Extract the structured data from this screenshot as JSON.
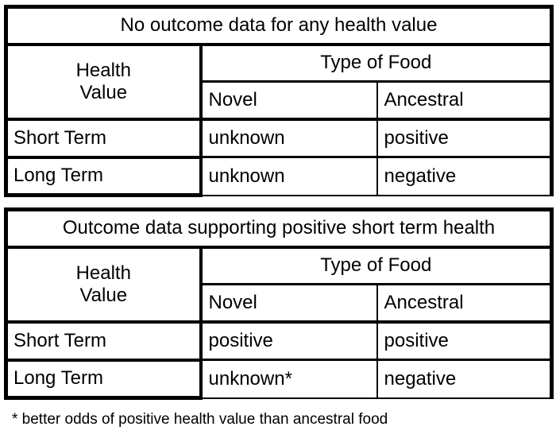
{
  "page": {
    "background": "#ffffff",
    "text_color": "#000000",
    "border_color": "#000000"
  },
  "tables": [
    {
      "title": "No outcome data for any health value",
      "corner_label_lines": [
        "Health",
        "Value"
      ],
      "group_header": "Type of Food",
      "col_headers": [
        "Novel",
        "Ancestral"
      ],
      "rows": [
        {
          "label": "Short Term",
          "novel": "unknown",
          "ancestral": "positive"
        },
        {
          "label": "Long Term",
          "novel": "unknown",
          "ancestral": "negative"
        }
      ]
    },
    {
      "title": "Outcome data supporting positive short term health",
      "corner_label_lines": [
        "Health",
        "Value"
      ],
      "group_header": "Type of Food",
      "col_headers": [
        "Novel",
        "Ancestral"
      ],
      "rows": [
        {
          "label": "Short Term",
          "novel": "positive",
          "ancestral": "positive"
        },
        {
          "label": "Long Term",
          "novel": "unknown*",
          "ancestral": "negative"
        }
      ]
    }
  ],
  "footnote": "* better odds of positive health value than ancestral food"
}
